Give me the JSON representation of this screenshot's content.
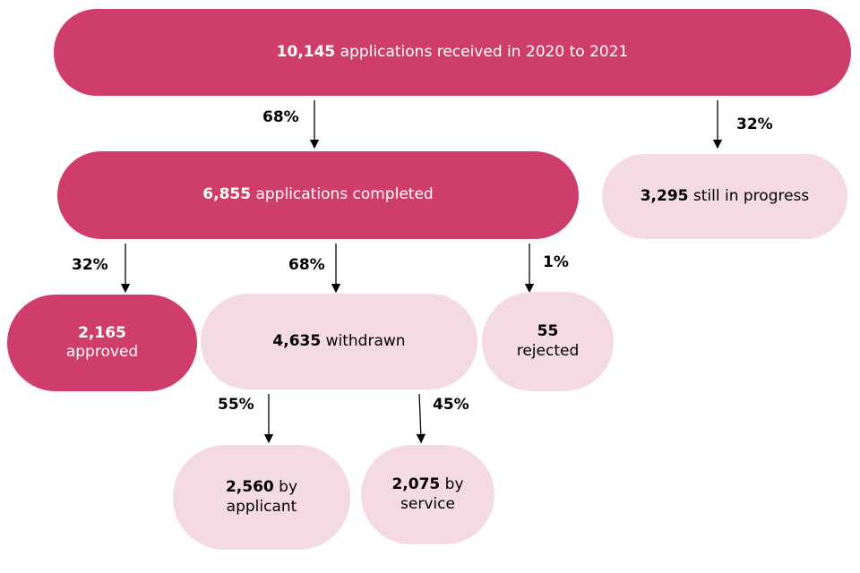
{
  "colors": {
    "dark": "#cf3d6b",
    "light": "#f4dbe2",
    "text_dark": "#000000",
    "text_light": "#ffffff"
  },
  "nodes": {
    "received": {
      "value": "10,145",
      "label": "applications received in 2020 to 2021"
    },
    "completed": {
      "value": "6,855",
      "label": "applications completed"
    },
    "in_progress": {
      "value": "3,295",
      "label": "still in progress"
    },
    "approved": {
      "value": "2,165",
      "label": "approved"
    },
    "withdrawn": {
      "value": "4,635",
      "label": "withdrawn"
    },
    "rejected": {
      "value": "55",
      "label": "rejected"
    },
    "by_applicant": {
      "value": "2,560",
      "label_a": "by",
      "label_b": "applicant"
    },
    "by_service": {
      "value": "2,075",
      "label_a": "by",
      "label_b": "service"
    }
  },
  "percentages": {
    "received_to_completed": "68%",
    "received_to_in_progress": "32%",
    "completed_to_approved": "32%",
    "completed_to_withdrawn": "68%",
    "completed_to_rejected": "1%",
    "withdrawn_to_applicant": "55%",
    "withdrawn_to_service": "45%"
  }
}
